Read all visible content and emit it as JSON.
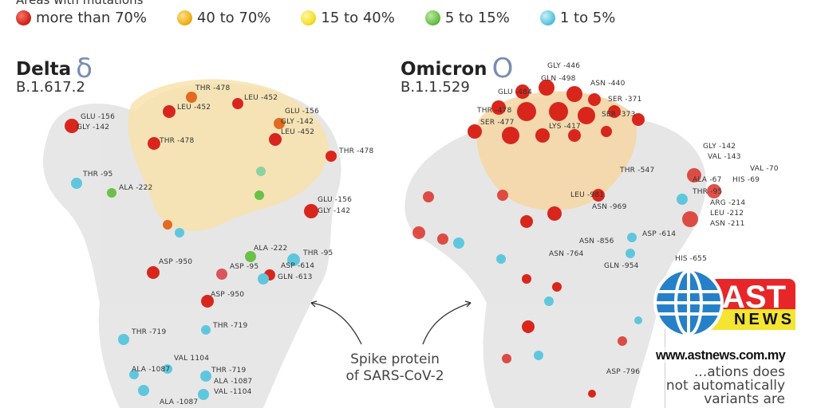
{
  "header": {
    "partial_title": "Areas with mutations"
  },
  "legend": [
    {
      "label": "more than 70%",
      "color": "#d9261c"
    },
    {
      "label": "40 to 70%",
      "color": "#f2b21d"
    },
    {
      "label": "15 to 40%",
      "color": "#f5e02a"
    },
    {
      "label": "5 to 15%",
      "color": "#6cc04a"
    },
    {
      "label": "1 to 5%",
      "color": "#5fc7dd"
    }
  ],
  "delta": {
    "name": "Delta",
    "greek": "δ",
    "lineage": "B.1.617.2",
    "labels": [
      "THR -478",
      "LEU -452",
      "LEU -452",
      "GLU -156",
      "GLY -142",
      "GLU -156",
      "GLY -142",
      "LEU -452",
      "THR -478",
      "THR -478",
      "THR -95",
      "ALA -222",
      "GLU -156",
      "GLY -142",
      "ASP -950",
      "ALA -222",
      "THR -95",
      "ASP -95",
      "ASP -614",
      "GLN -613",
      "ASP -950",
      "THR -719",
      "THR -719",
      "VAL 1104",
      "ALA -1087",
      "THR -719",
      "ALA -1087",
      "VAL -1104",
      "ALA -1087"
    ]
  },
  "omicron": {
    "name": "Omicron",
    "greek": "O",
    "lineage": "B.1.1.529",
    "labels": [
      "GLY -446",
      "GLN -498",
      "ASN -440",
      "GLU -484",
      "SER -371",
      "SER -373",
      "THR -478",
      "SER -477",
      "LYS -417",
      "THR -547",
      "GLY -142",
      "VAL -143",
      "ALA -67",
      "HIS -69",
      "VAL -70",
      "LEU -981",
      "THR -95",
      "ASN -969",
      "ARG -214",
      "LEU -212",
      "ASN -211",
      "ASP -614",
      "ASN -856",
      "ASN -764",
      "GLN -954",
      "HIS -655",
      "ASP -796"
    ]
  },
  "caption": {
    "line1": "Spike protein",
    "line2": "of SARS-CoV-2"
  },
  "note": {
    "line1": "...ations does",
    "line2": "not automatically",
    "line3": "variants are"
  },
  "logo": {
    "word1": "AST",
    "word2": "NEWS",
    "url": "www.astnews.com.my"
  }
}
